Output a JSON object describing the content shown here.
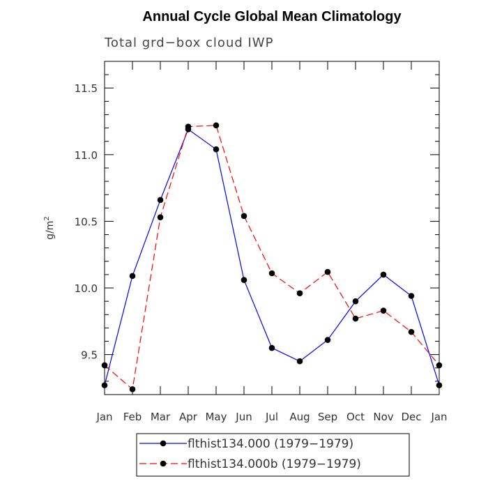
{
  "chart_data": {
    "type": "line",
    "title": "Annual Cycle Global Mean Climatology",
    "subtitle": "Total grd−box cloud IWP",
    "xlabel": "",
    "ylabel": "g/m",
    "ylabel_sup": "2",
    "categories": [
      "Jan",
      "Feb",
      "Mar",
      "Apr",
      "May",
      "Jun",
      "Jul",
      "Aug",
      "Sep",
      "Oct",
      "Nov",
      "Dec",
      "Jan"
    ],
    "ylim": [
      9.2,
      11.7
    ],
    "yticks": [
      9.5,
      10.0,
      10.5,
      11.0,
      11.5
    ],
    "ytick_labels": [
      "9.5",
      "10.0",
      "10.5",
      "11.0",
      "11.5"
    ],
    "series": [
      {
        "name": "flthist134.000 (1979−1979)",
        "color": "#0000ff",
        "dash": "solid",
        "values": [
          9.27,
          10.09,
          10.66,
          11.19,
          11.04,
          10.06,
          9.55,
          9.45,
          9.61,
          9.9,
          10.1,
          9.94,
          9.27
        ]
      },
      {
        "name": "flthist134.000b (1979−1979)",
        "color": "#ff0000",
        "dash": "dashed",
        "values": [
          9.42,
          9.24,
          10.53,
          11.21,
          11.22,
          10.54,
          10.11,
          9.96,
          10.12,
          9.77,
          9.83,
          9.67,
          9.42
        ]
      }
    ],
    "legend_position": "bottom"
  }
}
